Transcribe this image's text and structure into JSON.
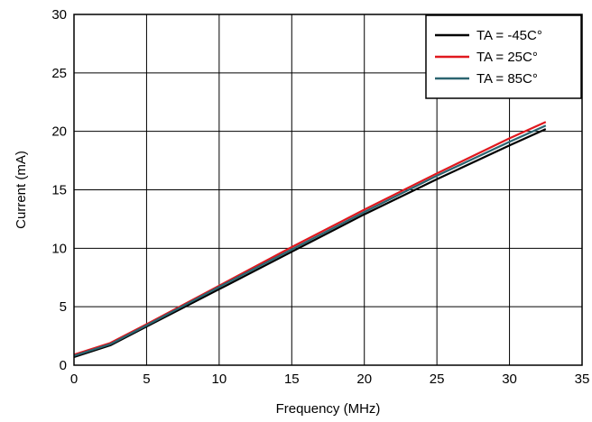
{
  "chart_data": {
    "type": "line",
    "title": "",
    "xlabel": "Frequency (MHz)",
    "ylabel": "Current (mA)",
    "xlim": [
      0,
      35
    ],
    "ylim": [
      0,
      30
    ],
    "xticks": [
      0,
      5,
      10,
      15,
      20,
      25,
      30,
      35
    ],
    "yticks": [
      0,
      5,
      10,
      15,
      20,
      25,
      30
    ],
    "grid": true,
    "legend_position": "top-right",
    "series": [
      {
        "name": "TA = -45C°",
        "color": "#000000",
        "x": [
          0,
          2.5,
          5,
          10,
          15,
          20,
          25,
          30,
          32.5
        ],
        "y": [
          0.7,
          1.7,
          3.3,
          6.5,
          9.7,
          12.9,
          15.9,
          18.8,
          20.2
        ]
      },
      {
        "name": "TA = 25C°",
        "color": "#e0181e",
        "x": [
          0,
          2.5,
          5,
          10,
          15,
          20,
          25,
          30,
          32.5
        ],
        "y": [
          0.9,
          1.9,
          3.5,
          6.8,
          10.1,
          13.3,
          16.4,
          19.4,
          20.8
        ]
      },
      {
        "name": "TA = 85C°",
        "color": "#2b6470",
        "x": [
          0,
          2.5,
          5,
          10,
          15,
          20,
          25,
          30,
          32.5
        ],
        "y": [
          0.8,
          1.8,
          3.4,
          6.7,
          9.9,
          13.1,
          16.2,
          19.1,
          20.5
        ]
      }
    ]
  }
}
